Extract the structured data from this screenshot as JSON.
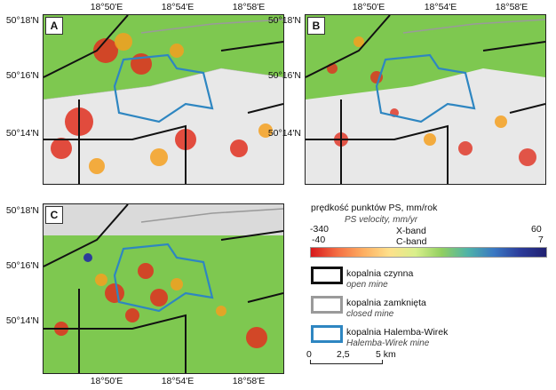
{
  "panels": [
    {
      "letter": "A"
    },
    {
      "letter": "B"
    },
    {
      "letter": "C"
    }
  ],
  "lat_labels": [
    "50°18'N",
    "50°16'N",
    "50°14'N"
  ],
  "lon_labels": [
    "18°50'E",
    "18°54'E",
    "18°58'E"
  ],
  "legend": {
    "title": "prędkość punktów PS, mm/rok",
    "subtitle": "PS velocity, mm/yr",
    "xband_label": "X-band",
    "cband_label": "C-band",
    "xband_min": "-340",
    "xband_max": "60",
    "cband_min": "-40",
    "cband_max": "7",
    "colors": [
      "#d7191c",
      "#f46d43",
      "#fdae61",
      "#fee08b",
      "#d9ef8b",
      "#91cf60",
      "#4fb3a8",
      "#3a78c2",
      "#2c3c9a",
      "#202070"
    ],
    "items": [
      {
        "label": "kopalnia czynna",
        "sublabel": "open mine",
        "color": "#111111"
      },
      {
        "label": "kopalnia zamknięta",
        "sublabel": "closed mine",
        "color": "#9a9a9a"
      },
      {
        "label": "kopalnia Halemba-Wirek",
        "sublabel": "Halemba-Wirek mine",
        "color": "#2e86c1"
      }
    ],
    "scale": {
      "ticks": [
        "0",
        "2,5",
        "5 km"
      ]
    }
  }
}
